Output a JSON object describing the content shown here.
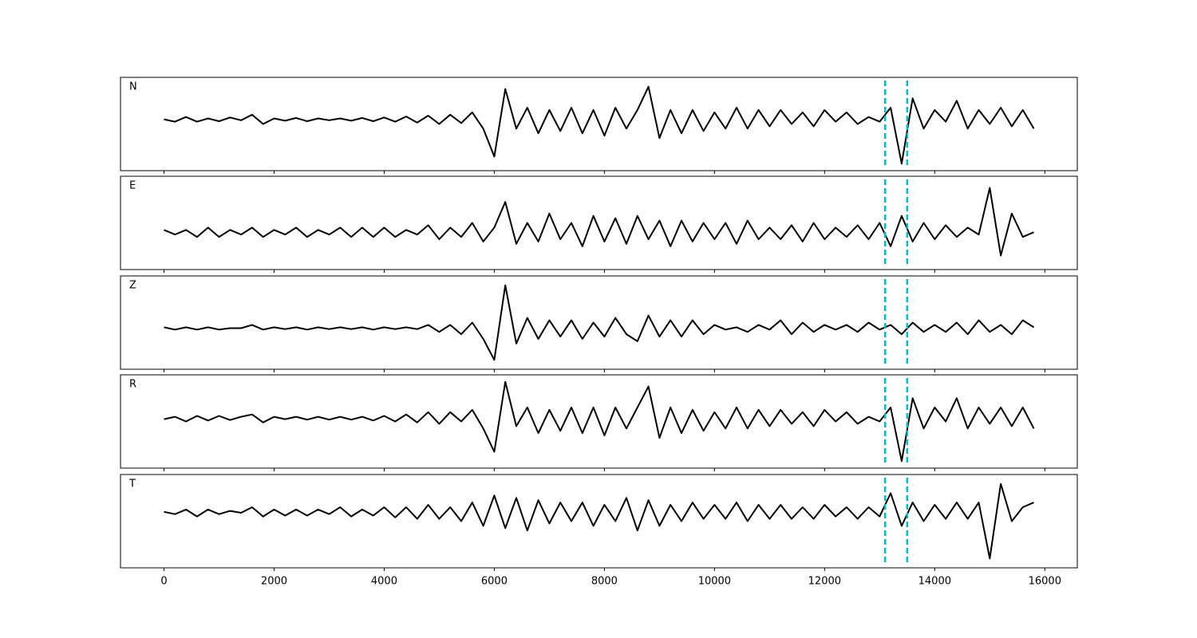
{
  "chart_data": [
    {
      "type": "line",
      "label": "N",
      "color": "#000000",
      "ylim": [
        -1,
        1
      ],
      "xlim": [
        -790,
        16590
      ],
      "xticks": [
        0,
        2000,
        4000,
        6000,
        8000,
        10000,
        12000,
        14000,
        16000
      ],
      "xtick_labels": false,
      "vlines": [
        13100,
        13500
      ],
      "vline_color": "#00bfbf",
      "x": [
        0,
        200,
        400,
        600,
        800,
        1000,
        1200,
        1400,
        1600,
        1800,
        2000,
        2200,
        2400,
        2600,
        2800,
        3000,
        3200,
        3400,
        3600,
        3800,
        4000,
        4200,
        4400,
        4600,
        4800,
        5000,
        5200,
        5400,
        5600,
        5800,
        6000,
        6200,
        6400,
        6600,
        6800,
        7000,
        7200,
        7400,
        7600,
        7800,
        8000,
        8200,
        8400,
        8600,
        8800,
        9000,
        9200,
        9400,
        9600,
        9800,
        10000,
        10200,
        10400,
        10600,
        10800,
        11000,
        11200,
        11400,
        11600,
        11800,
        12000,
        12200,
        12400,
        12600,
        12800,
        13000,
        13200,
        13400,
        13600,
        13800,
        14000,
        14200,
        14400,
        14600,
        14800,
        15000,
        15200,
        15400,
        15600,
        15800
      ],
      "values": [
        0.1,
        0.05,
        0.15,
        0.05,
        0.12,
        0.06,
        0.14,
        0.08,
        0.2,
        0.0,
        0.12,
        0.07,
        0.13,
        0.06,
        0.12,
        0.08,
        0.12,
        0.07,
        0.13,
        0.06,
        0.14,
        0.05,
        0.16,
        0.03,
        0.18,
        0.0,
        0.2,
        0.02,
        0.25,
        -0.1,
        -0.7,
        0.75,
        -0.1,
        0.35,
        -0.2,
        0.3,
        -0.15,
        0.35,
        -0.2,
        0.3,
        -0.25,
        0.35,
        -0.1,
        0.3,
        0.8,
        -0.3,
        0.3,
        -0.2,
        0.3,
        -0.15,
        0.25,
        -0.1,
        0.35,
        -0.1,
        0.3,
        -0.05,
        0.3,
        0.0,
        0.25,
        -0.05,
        0.3,
        0.05,
        0.25,
        0.0,
        0.15,
        0.05,
        0.35,
        -0.85,
        0.55,
        -0.1,
        0.3,
        0.05,
        0.5,
        -0.1,
        0.3,
        0.0,
        0.35,
        -0.05,
        0.3,
        -0.1
      ]
    },
    {
      "type": "line",
      "label": "E",
      "color": "#000000",
      "ylim": [
        -1,
        1
      ],
      "xlim": [
        -790,
        16590
      ],
      "xticks": [
        0,
        2000,
        4000,
        6000,
        8000,
        10000,
        12000,
        14000,
        16000
      ],
      "xtick_labels": false,
      "vlines": [
        13100,
        13500
      ],
      "vline_color": "#00bfbf",
      "x": [
        0,
        200,
        400,
        600,
        800,
        1000,
        1200,
        1400,
        1600,
        1800,
        2000,
        2200,
        2400,
        2600,
        2800,
        3000,
        3200,
        3400,
        3600,
        3800,
        4000,
        4200,
        4400,
        4600,
        4800,
        5000,
        5200,
        5400,
        5600,
        5800,
        6000,
        6200,
        6400,
        6600,
        6800,
        7000,
        7200,
        7400,
        7600,
        7800,
        8000,
        8200,
        8400,
        8600,
        8800,
        9000,
        9200,
        9400,
        9600,
        9800,
        10000,
        10200,
        10400,
        10600,
        10800,
        11000,
        11200,
        11400,
        11600,
        11800,
        12000,
        12200,
        12400,
        12600,
        12800,
        13000,
        13200,
        13400,
        13600,
        13800,
        14000,
        14200,
        14400,
        14600,
        14800,
        15000,
        15200,
        15400,
        15600,
        15800
      ],
      "values": [
        -0.15,
        -0.25,
        -0.15,
        -0.3,
        -0.1,
        -0.3,
        -0.15,
        -0.25,
        -0.1,
        -0.3,
        -0.15,
        -0.25,
        -0.1,
        -0.3,
        -0.15,
        -0.25,
        -0.1,
        -0.3,
        -0.1,
        -0.3,
        -0.1,
        -0.3,
        -0.15,
        -0.25,
        -0.05,
        -0.35,
        -0.1,
        -0.3,
        0.0,
        -0.4,
        -0.1,
        0.45,
        -0.45,
        0.0,
        -0.4,
        0.2,
        -0.35,
        0.0,
        -0.5,
        0.15,
        -0.4,
        0.1,
        -0.45,
        0.15,
        -0.35,
        0.05,
        -0.5,
        0.05,
        -0.4,
        0.0,
        -0.35,
        0.0,
        -0.45,
        0.05,
        -0.35,
        -0.1,
        -0.35,
        -0.05,
        -0.4,
        0.0,
        -0.35,
        -0.1,
        -0.3,
        -0.05,
        -0.35,
        0.0,
        -0.5,
        0.15,
        -0.4,
        0.0,
        -0.35,
        -0.05,
        -0.3,
        -0.1,
        -0.25,
        0.75,
        -0.7,
        0.2,
        -0.3,
        -0.2
      ]
    },
    {
      "type": "line",
      "label": "Z",
      "color": "#000000",
      "ylim": [
        -1,
        1
      ],
      "xlim": [
        -790,
        16590
      ],
      "xticks": [
        0,
        2000,
        4000,
        6000,
        8000,
        10000,
        12000,
        14000,
        16000
      ],
      "xtick_labels": false,
      "vlines": [
        13100,
        13500
      ],
      "vline_color": "#00bfbf",
      "x": [
        0,
        200,
        400,
        600,
        800,
        1000,
        1200,
        1400,
        1600,
        1800,
        2000,
        2200,
        2400,
        2600,
        2800,
        3000,
        3200,
        3400,
        3600,
        3800,
        4000,
        4200,
        4400,
        4600,
        4800,
        5000,
        5200,
        5400,
        5600,
        5800,
        6000,
        6200,
        6400,
        6600,
        6800,
        7000,
        7200,
        7400,
        7600,
        7800,
        8000,
        8200,
        8400,
        8600,
        8800,
        9000,
        9200,
        9400,
        9600,
        9800,
        10000,
        10200,
        10400,
        10600,
        10800,
        11000,
        11200,
        11400,
        11600,
        11800,
        12000,
        12200,
        12400,
        12600,
        12800,
        13000,
        13200,
        13400,
        13600,
        13800,
        14000,
        14200,
        14400,
        14600,
        14800,
        15000,
        15200,
        15400,
        15600,
        15800
      ],
      "values": [
        -0.1,
        -0.15,
        -0.1,
        -0.15,
        -0.1,
        -0.15,
        -0.12,
        -0.12,
        -0.05,
        -0.15,
        -0.1,
        -0.14,
        -0.1,
        -0.15,
        -0.1,
        -0.14,
        -0.1,
        -0.14,
        -0.1,
        -0.15,
        -0.1,
        -0.14,
        -0.1,
        -0.14,
        -0.05,
        -0.2,
        -0.05,
        -0.25,
        0.0,
        -0.35,
        -0.8,
        0.8,
        -0.45,
        0.1,
        -0.35,
        0.05,
        -0.3,
        0.05,
        -0.35,
        0.0,
        -0.3,
        0.1,
        -0.25,
        -0.4,
        0.15,
        -0.3,
        0.05,
        -0.3,
        0.05,
        -0.25,
        -0.05,
        -0.15,
        -0.1,
        -0.2,
        -0.05,
        -0.15,
        0.05,
        -0.25,
        0.0,
        -0.2,
        -0.05,
        -0.15,
        -0.05,
        -0.2,
        0.0,
        -0.15,
        -0.05,
        -0.25,
        0.0,
        -0.2,
        -0.05,
        -0.2,
        0.0,
        -0.25,
        0.05,
        -0.2,
        -0.05,
        -0.25,
        0.05,
        -0.1
      ]
    },
    {
      "type": "line",
      "label": "R",
      "color": "#000000",
      "ylim": [
        -1,
        1
      ],
      "xlim": [
        -790,
        16590
      ],
      "xticks": [
        0,
        2000,
        4000,
        6000,
        8000,
        10000,
        12000,
        14000,
        16000
      ],
      "xtick_labels": false,
      "vlines": [
        13100,
        13500
      ],
      "vline_color": "#00bfbf",
      "x": [
        0,
        200,
        400,
        600,
        800,
        1000,
        1200,
        1400,
        1600,
        1800,
        2000,
        2200,
        2400,
        2600,
        2800,
        3000,
        3200,
        3400,
        3600,
        3800,
        4000,
        4200,
        4400,
        4600,
        4800,
        5000,
        5200,
        5400,
        5600,
        5800,
        6000,
        6200,
        6400,
        6600,
        6800,
        7000,
        7200,
        7400,
        7600,
        7800,
        8000,
        8200,
        8400,
        8600,
        8800,
        9000,
        9200,
        9400,
        9600,
        9800,
        10000,
        10200,
        10400,
        10600,
        10800,
        11000,
        11200,
        11400,
        11600,
        11800,
        12000,
        12200,
        12400,
        12600,
        12800,
        13000,
        13200,
        13400,
        13600,
        13800,
        14000,
        14200,
        14400,
        14600,
        14800,
        15000,
        15200,
        15400,
        15600,
        15800
      ],
      "values": [
        0.05,
        0.1,
        0.0,
        0.12,
        0.02,
        0.12,
        0.03,
        0.1,
        0.15,
        -0.02,
        0.1,
        0.05,
        0.1,
        0.04,
        0.1,
        0.04,
        0.1,
        0.04,
        0.1,
        0.02,
        0.12,
        0.0,
        0.15,
        -0.02,
        0.2,
        -0.05,
        0.2,
        0.0,
        0.25,
        -0.15,
        -0.65,
        0.85,
        -0.1,
        0.3,
        -0.25,
        0.25,
        -0.2,
        0.3,
        -0.25,
        0.3,
        -0.3,
        0.3,
        -0.15,
        0.3,
        0.75,
        -0.35,
        0.3,
        -0.25,
        0.25,
        -0.2,
        0.2,
        -0.15,
        0.3,
        -0.15,
        0.25,
        -0.1,
        0.25,
        -0.05,
        0.2,
        -0.1,
        0.25,
        0.0,
        0.2,
        -0.05,
        0.1,
        0.0,
        0.3,
        -0.85,
        0.5,
        -0.15,
        0.3,
        0.0,
        0.5,
        -0.15,
        0.3,
        -0.05,
        0.3,
        -0.1,
        0.3,
        -0.15
      ]
    },
    {
      "type": "line",
      "label": "T",
      "color": "#000000",
      "ylim": [
        -1,
        1
      ],
      "xlim": [
        -790,
        16590
      ],
      "xticks": [
        0,
        2000,
        4000,
        6000,
        8000,
        10000,
        12000,
        14000,
        16000
      ],
      "xtick_labels": true,
      "vlines": [
        13100,
        13500
      ],
      "vline_color": "#00bfbf",
      "x": [
        0,
        200,
        400,
        600,
        800,
        1000,
        1200,
        1400,
        1600,
        1800,
        2000,
        2200,
        2400,
        2600,
        2800,
        3000,
        3200,
        3400,
        3600,
        3800,
        4000,
        4200,
        4400,
        4600,
        4800,
        5000,
        5200,
        5400,
        5600,
        5800,
        6000,
        6200,
        6400,
        6600,
        6800,
        7000,
        7200,
        7400,
        7600,
        7800,
        8000,
        8200,
        8400,
        8600,
        8800,
        9000,
        9200,
        9400,
        9600,
        9800,
        10000,
        10200,
        10400,
        10600,
        10800,
        11000,
        11200,
        11400,
        11600,
        11800,
        12000,
        12200,
        12400,
        12600,
        12800,
        13000,
        13200,
        13400,
        13600,
        13800,
        14000,
        14200,
        14400,
        14600,
        14800,
        15000,
        15200,
        15400,
        15600,
        15800
      ],
      "values": [
        0.2,
        0.15,
        0.25,
        0.1,
        0.25,
        0.15,
        0.22,
        0.18,
        0.3,
        0.1,
        0.25,
        0.12,
        0.25,
        0.12,
        0.25,
        0.15,
        0.3,
        0.1,
        0.25,
        0.12,
        0.3,
        0.08,
        0.3,
        0.05,
        0.35,
        0.05,
        0.3,
        0.0,
        0.4,
        -0.1,
        0.55,
        -0.15,
        0.5,
        -0.2,
        0.45,
        -0.05,
        0.4,
        0.0,
        0.4,
        -0.1,
        0.35,
        0.0,
        0.5,
        -0.2,
        0.45,
        -0.1,
        0.35,
        0.0,
        0.4,
        0.05,
        0.35,
        0.05,
        0.4,
        0.0,
        0.35,
        0.05,
        0.35,
        0.05,
        0.3,
        0.05,
        0.35,
        0.1,
        0.3,
        0.05,
        0.3,
        0.1,
        0.6,
        -0.1,
        0.4,
        0.0,
        0.35,
        0.05,
        0.4,
        0.05,
        0.4,
        -0.8,
        0.8,
        0.0,
        0.3,
        0.4
      ]
    }
  ]
}
